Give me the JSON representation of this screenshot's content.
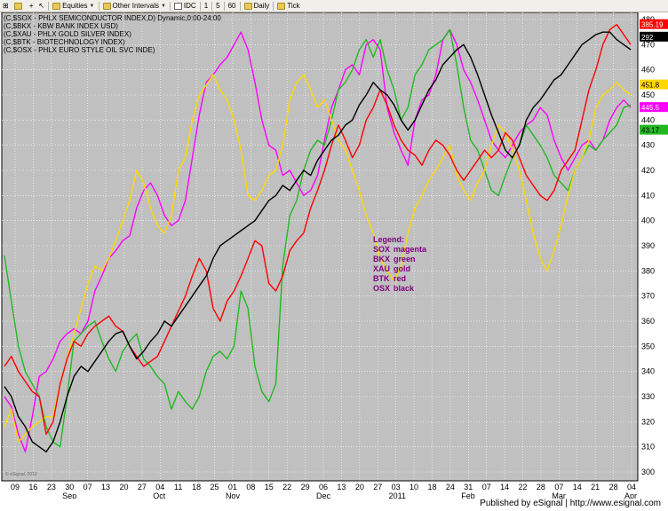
{
  "toolbar": {
    "items": [
      {
        "label": "Equities",
        "icon": "folder-icon",
        "dropdown": true
      },
      {
        "label": "Other Intervals",
        "icon": "folder-icon",
        "dropdown": true
      },
      {
        "label": "IDC",
        "icon": "indicator-icon"
      },
      {
        "label": "1"
      },
      {
        "label": "5"
      },
      {
        "label": "60"
      },
      {
        "label": "Daily",
        "icon": "folder-icon"
      },
      {
        "label": "Tick",
        "icon": "folder-icon"
      }
    ]
  },
  "header_lines": [
    "(C,$SOX - PHLX SEMICONDUCTOR INDEX,D) Dynamic,0:00-24:00",
    "(C,$BKX - KBW BANK INDEX USD)",
    "(C,$XAU - PHLX GOLD SILVER INDEX)",
    "(C,$BTK - BIOTECHNOLOGY INDEX)",
    "(C,$OSX - PHLX EURO STYLE OIL SVC INDE)"
  ],
  "footer": "Published by eSignal | http://www.esignal.com",
  "watermark": "© eSignal, 2010",
  "chart_data": {
    "type": "line",
    "title": "",
    "xlabel": "",
    "ylabel": "",
    "ylim": [
      300,
      480
    ],
    "y_ticks": [
      300,
      310,
      320,
      330,
      340,
      350,
      360,
      370,
      380,
      390,
      400,
      410,
      420,
      430,
      440,
      450,
      460,
      470,
      480
    ],
    "x_ticks": [
      "09",
      "16",
      "23",
      "30",
      "07",
      "13",
      "20",
      "27",
      "04",
      "11",
      "18",
      "25",
      "01",
      "08",
      "15",
      "22",
      "29",
      "06",
      "13",
      "20",
      "27",
      "03",
      "10",
      "18",
      "24",
      "31",
      "07",
      "14",
      "22",
      "28",
      "07",
      "14",
      "21",
      "28",
      "04"
    ],
    "month_labels": [
      "Sep",
      "Oct",
      "Nov",
      "Dec",
      "2011",
      "Feb",
      "Mar",
      "Apr"
    ],
    "grid": true,
    "background": "#c0c0c0",
    "legend_title": "Legend:",
    "legend": [
      {
        "code": "SOX",
        "color_name": "magenta",
        "color": "#ff00ff"
      },
      {
        "code": "BKX",
        "color_name": "green",
        "color": "#22b822"
      },
      {
        "code": "XAU",
        "color_name": "gold",
        "color": "#ffd700"
      },
      {
        "code": "BTK",
        "color_name": "red",
        "color": "#ff0000"
      },
      {
        "code": "OSX",
        "color_name": "black",
        "color": "#000000"
      }
    ],
    "last_values": [
      {
        "label": "385.19",
        "color": "#ff0000",
        "text_color": "#ffffff",
        "y": 478
      },
      {
        "label": "292",
        "color": "#000000",
        "text_color": "#ffffff",
        "y": 473
      },
      {
        "label": "451.8",
        "color": "#ffd700",
        "text_color": "#000000",
        "y": 454
      },
      {
        "label": "445.5",
        "color": "#ff00ff",
        "text_color": "#ffffff",
        "y": 445
      },
      {
        "label": "43.17",
        "color": "#22b822",
        "text_color": "#000000",
        "y": 436
      }
    ],
    "series": [
      {
        "name": "SOX",
        "color": "#ff00ff",
        "values": [
          330,
          326,
          315,
          308,
          322,
          338,
          340,
          345,
          352,
          355,
          357,
          355,
          360,
          372,
          378,
          385,
          388,
          392,
          394,
          405,
          412,
          415,
          410,
          402,
          398,
          400,
          408,
          425,
          442,
          455,
          458,
          462,
          465,
          470,
          475,
          468,
          455,
          440,
          430,
          428,
          418,
          420,
          415,
          410,
          412,
          418,
          432,
          445,
          452,
          460,
          462,
          458,
          470,
          472,
          468,
          445,
          435,
          428,
          422,
          440,
          448,
          450,
          458,
          472,
          476,
          470,
          460,
          455,
          448,
          440,
          432,
          428,
          425,
          430,
          435,
          438,
          440,
          445,
          442,
          432,
          425,
          420,
          425,
          430,
          432,
          428,
          432,
          440,
          445,
          448,
          445
        ]
      },
      {
        "name": "BKX",
        "color": "#22b822",
        "values": [
          386,
          368,
          350,
          340,
          335,
          330,
          318,
          312,
          310,
          330,
          352,
          355,
          358,
          360,
          352,
          345,
          340,
          348,
          352,
          355,
          345,
          342,
          338,
          335,
          325,
          332,
          328,
          325,
          330,
          340,
          346,
          348,
          345,
          350,
          372,
          365,
          342,
          332,
          328,
          335,
          382,
          402,
          408,
          420,
          428,
          432,
          430,
          440,
          452,
          455,
          460,
          468,
          472,
          465,
          472,
          460,
          452,
          440,
          445,
          458,
          462,
          468,
          470,
          472,
          476,
          462,
          445,
          432,
          428,
          420,
          412,
          410,
          418,
          425,
          430,
          438,
          434,
          430,
          425,
          418,
          415,
          412,
          420,
          425,
          430,
          428,
          432,
          435,
          438,
          445,
          446
        ]
      },
      {
        "name": "XAU",
        "color": "#ffd700",
        "values": [
          318,
          325,
          312,
          315,
          318,
          320,
          322,
          322,
          335,
          345,
          355,
          365,
          375,
          382,
          380,
          385,
          392,
          400,
          408,
          420,
          415,
          405,
          398,
          395,
          402,
          420,
          425,
          440,
          450,
          454,
          458,
          452,
          448,
          440,
          428,
          410,
          408,
          412,
          418,
          420,
          430,
          448,
          455,
          458,
          452,
          445,
          448,
          440,
          432,
          428,
          420,
          412,
          402,
          395,
          385,
          380,
          376,
          382,
          395,
          405,
          410,
          416,
          420,
          425,
          430,
          418,
          412,
          408,
          415,
          420,
          430,
          438,
          435,
          428,
          420,
          408,
          395,
          385,
          380,
          388,
          398,
          410,
          420,
          425,
          432,
          445,
          450,
          452,
          455,
          452,
          450
        ]
      },
      {
        "name": "BTK",
        "color": "#ff0000",
        "values": [
          342,
          346,
          340,
          336,
          332,
          330,
          315,
          320,
          335,
          345,
          352,
          350,
          355,
          358,
          360,
          362,
          358,
          356,
          350,
          346,
          342,
          344,
          346,
          352,
          358,
          364,
          370,
          378,
          385,
          380,
          365,
          360,
          368,
          372,
          378,
          385,
          392,
          390,
          375,
          372,
          378,
          388,
          392,
          395,
          405,
          412,
          420,
          430,
          438,
          432,
          425,
          430,
          440,
          445,
          452,
          446,
          438,
          432,
          428,
          426,
          422,
          428,
          432,
          430,
          426,
          420,
          416,
          420,
          424,
          428,
          425,
          428,
          435,
          432,
          425,
          418,
          414,
          410,
          408,
          412,
          420,
          424,
          428,
          440,
          452,
          460,
          470,
          476,
          478,
          474,
          470
        ]
      },
      {
        "name": "OSX",
        "color": "#000000",
        "values": [
          334,
          330,
          322,
          318,
          312,
          310,
          308,
          312,
          320,
          330,
          338,
          342,
          340,
          344,
          348,
          352,
          355,
          356,
          350,
          345,
          348,
          352,
          355,
          360,
          358,
          362,
          366,
          370,
          374,
          378,
          385,
          390,
          392,
          394,
          396,
          398,
          400,
          404,
          408,
          410,
          414,
          412,
          416,
          420,
          418,
          424,
          428,
          432,
          434,
          438,
          440,
          446,
          450,
          455,
          452,
          450,
          446,
          440,
          436,
          440,
          446,
          452,
          456,
          462,
          465,
          468,
          470,
          465,
          458,
          450,
          442,
          435,
          428,
          425,
          430,
          440,
          445,
          448,
          452,
          456,
          458,
          462,
          466,
          470,
          472,
          474,
          475,
          475,
          472,
          470,
          468
        ]
      }
    ]
  }
}
